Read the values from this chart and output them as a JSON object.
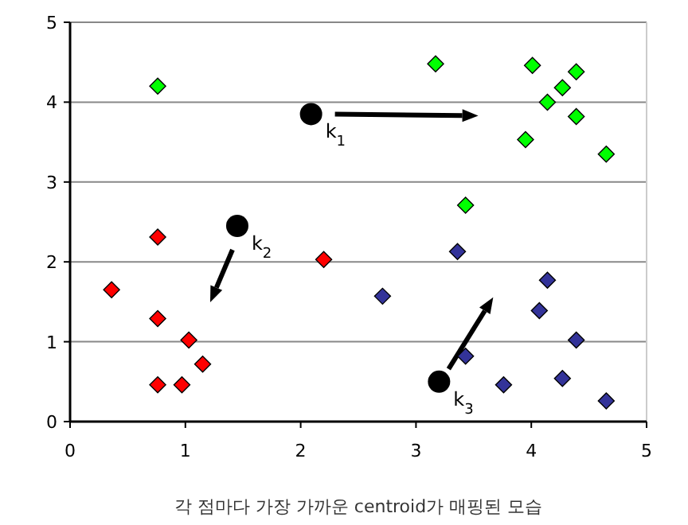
{
  "chart_data": {
    "type": "scatter",
    "xlim": [
      0,
      5
    ],
    "ylim": [
      0,
      5
    ],
    "xticks": [
      0,
      1,
      2,
      3,
      4,
      5
    ],
    "yticks": [
      0,
      1,
      2,
      3,
      4,
      5
    ],
    "grid": "y",
    "series": [
      {
        "color": "#00ff00",
        "marker": "diamond",
        "x": [
          0.76,
          3.17,
          4.01,
          4.27,
          4.39,
          4.14,
          4.39,
          3.95,
          4.65,
          3.43
        ],
        "values": [
          4.2,
          4.48,
          4.46,
          4.18,
          4.38,
          4.0,
          3.82,
          3.53,
          3.35,
          2.71
        ]
      },
      {
        "color": "#ff0000",
        "marker": "diamond",
        "x": [
          0.36,
          0.76,
          0.76,
          1.03,
          1.15,
          0.76,
          0.97,
          2.2
        ],
        "values": [
          1.65,
          2.31,
          1.29,
          1.02,
          0.72,
          0.46,
          0.46,
          2.03
        ]
      },
      {
        "color": "#333399",
        "marker": "diamond",
        "x": [
          2.71,
          3.36,
          4.14,
          4.07,
          4.39,
          4.27,
          3.76,
          4.65,
          3.43
        ],
        "values": [
          1.57,
          2.13,
          1.77,
          1.39,
          1.02,
          0.54,
          0.46,
          0.26,
          0.82
        ]
      },
      {
        "color": "#000000",
        "marker": "circle",
        "x": [
          2.09,
          1.45,
          3.2
        ],
        "values": [
          3.85,
          2.45,
          0.5
        ]
      }
    ],
    "annotations": [
      {
        "text": "k$_{1}$",
        "x": 2.09,
        "y": 3.85
      },
      {
        "text": "k$_{2}$",
        "x": 1.45,
        "y": 2.45
      },
      {
        "text": "k$_{3}$",
        "x": 3.2,
        "y": 0.5
      },
      "각 점마다 가장 가까운 centroid가 매핑된 모습"
    ]
  }
}
